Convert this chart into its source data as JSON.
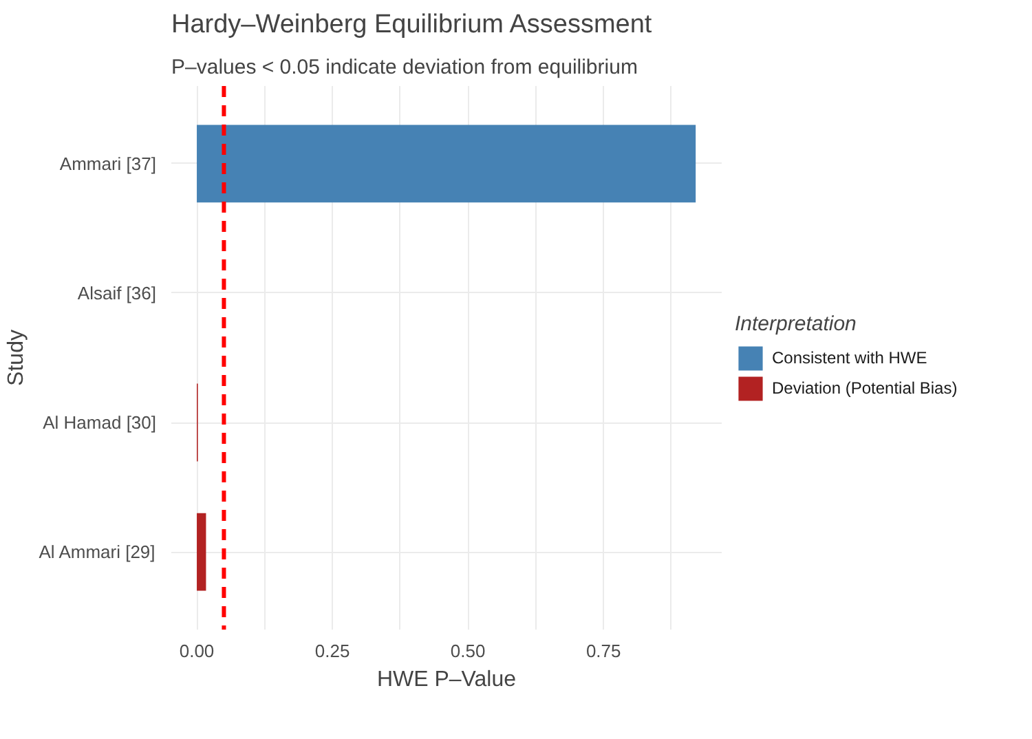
{
  "chart_data": {
    "type": "bar",
    "orientation": "horizontal",
    "title": "Hardy–Weinberg Equilibrium Assessment",
    "subtitle": "P–values < 0.05 indicate deviation from equilibrium",
    "xlabel": "HWE P–Value",
    "ylabel": "Study",
    "legend_title": "Interpretation",
    "legend": "right",
    "grid": true,
    "categories": [
      "Ammari [37]",
      "Alsaif [36]",
      "Al Hamad [30]",
      "Al Ammari [29]"
    ],
    "series": [
      {
        "name": "Consistent with HWE",
        "color": "#4682b4",
        "values": [
          0.92,
          null,
          null,
          null
        ]
      },
      {
        "name": "Deviation (Potential Bias)",
        "color": "#b22222",
        "values": [
          null,
          0,
          0.002,
          0.017
        ]
      }
    ],
    "xlim": [
      -0.047,
      0.968
    ],
    "xticks": [
      {
        "value": 0,
        "label": "0.00"
      },
      {
        "value": 0.125,
        "label": null
      },
      {
        "value": 0.25,
        "label": "0.25"
      },
      {
        "value": 0.375,
        "label": null
      },
      {
        "value": 0.5,
        "label": "0.50"
      },
      {
        "value": 0.625,
        "label": null
      },
      {
        "value": 0.75,
        "label": "0.75"
      },
      {
        "value": 0.875,
        "label": null
      }
    ],
    "ref_lines": [
      {
        "axis": "x",
        "value": 0.05,
        "label": null,
        "color": "#ff0000",
        "line_style": "dashed"
      }
    ]
  }
}
